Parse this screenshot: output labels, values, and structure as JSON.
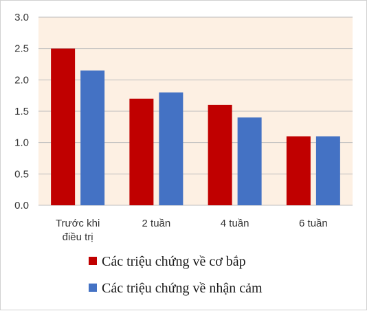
{
  "chart_data": {
    "type": "bar",
    "title": "",
    "xlabel": "",
    "ylabel": "",
    "categories": [
      [
        "Trước khi",
        "điều trị"
      ],
      [
        "2 tuần"
      ],
      [
        "4 tuần"
      ],
      [
        "6 tuần"
      ]
    ],
    "series": [
      {
        "name": "Các triệu chứng về cơ bắp",
        "color": "#c00000",
        "values": [
          2.5,
          1.7,
          1.6,
          1.1
        ]
      },
      {
        "name": "Các triệu chứng về nhận cảm",
        "color": "#4472c4",
        "values": [
          2.15,
          1.8,
          1.4,
          1.1
        ]
      }
    ],
    "ylim": [
      0,
      3.0
    ],
    "yticks": [
      "0.0",
      "0.5",
      "1.0",
      "1.5",
      "2.0",
      "2.5",
      "3.0"
    ],
    "grid": true,
    "plot_background": "#fdf0e3",
    "gridline_color": "#bdbdbd",
    "legend_position": "bottom-left"
  }
}
